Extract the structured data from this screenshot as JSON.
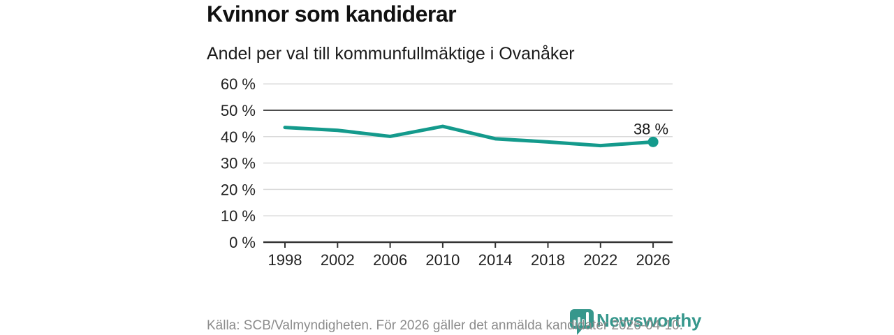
{
  "chart_data": {
    "type": "line",
    "title": "Kvinnor som kandiderar",
    "subtitle": "Andel per val till kommunfullmäktige i Ovanåker",
    "categories": [
      "1998",
      "2002",
      "2006",
      "2010",
      "2014",
      "2018",
      "2022",
      "2026"
    ],
    "values": [
      43.5,
      42.4,
      40.1,
      43.9,
      39.2,
      38,
      36.6,
      38
    ],
    "xlabel": "",
    "ylabel": "",
    "ylim": [
      0,
      60
    ],
    "ytick_step": 10,
    "ytick_suffix": " %",
    "reference_line": 50,
    "grid": true,
    "legend_position": "none",
    "end_label": "38 %",
    "colors": {
      "line": "#149a8c",
      "marker": "#149a8c",
      "gridline": "#dadada",
      "reference_line": "#4d4d4d",
      "axis": "#333333",
      "brand": "#36978c"
    }
  },
  "footer": {
    "source_text": "Källa: SCB/Valmyndigheten. För 2026 gäller det anmälda kandidater 2026-04-10.",
    "logo_text": "Newsworthy"
  }
}
